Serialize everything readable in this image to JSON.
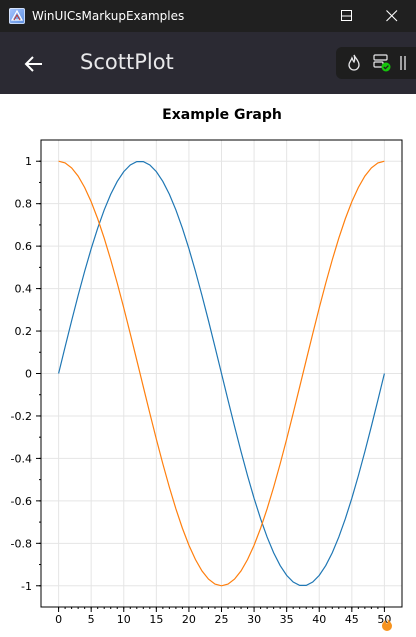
{
  "window": {
    "title": "WinUICsMarkupExamples"
  },
  "header": {
    "page_title": "ScottPlot"
  },
  "icons": {
    "app": "app-icon",
    "back": "back-arrow-icon",
    "minimize": "minimize-icon",
    "maximize": "maximize-icon",
    "close": "close-icon",
    "toolbar": [
      "flame-icon",
      "server-check-icon",
      "pause-icon"
    ]
  },
  "colors": {
    "titlebar_bg": "#202020",
    "header_bg": "#2b2a33",
    "series_sin": "#1f77b4",
    "series_cos": "#ff7f0e",
    "status_green": "#16c60c"
  },
  "chart_data": {
    "type": "line",
    "title": "Example Graph",
    "xlabel": "",
    "ylabel": "",
    "xlim": [
      -2.7,
      52.7
    ],
    "ylim": [
      -1.1,
      1.1
    ],
    "x_ticks": [
      "0",
      "5",
      "10",
      "15",
      "20",
      "25",
      "30",
      "35",
      "40",
      "45",
      "50"
    ],
    "y_ticks": [
      "1",
      "0.8",
      "0.6",
      "0.4",
      "0.2",
      "0",
      "-0.2",
      "-0.4",
      "-0.6",
      "-0.8",
      "-1"
    ],
    "grid": true,
    "legend": "none",
    "series": [
      {
        "function": "sin(2*pi*x/50)",
        "x_start": 0,
        "x_end": 50,
        "points": 51,
        "color": "#1f77b4"
      },
      {
        "function": "cos(2*pi*x/50)",
        "x_start": 0,
        "x_end": 50,
        "points": 51,
        "color": "#ff7f0e"
      }
    ]
  }
}
